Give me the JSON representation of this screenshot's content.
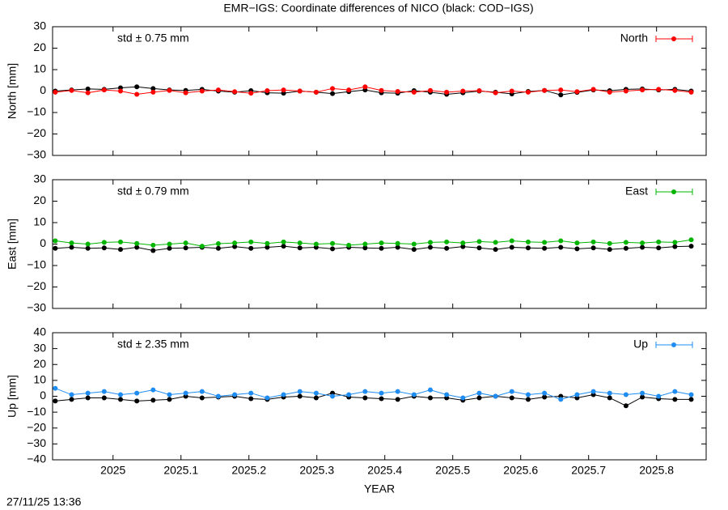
{
  "chart_data": [
    {
      "type": "scatter",
      "title": "EMR−IGS: Coordinate differences of NICO (black: COD−IGS)",
      "ylabel": "North [mm]",
      "annotation": "std ± 0.75 mm",
      "legend": "top-right",
      "xlim": [
        2024.911,
        2025.873
      ],
      "xticks": [
        2025,
        2025.1,
        2025.2,
        2025.3,
        2025.4,
        2025.5,
        2025.6,
        2025.7,
        2025.8
      ],
      "ylim": [
        -30,
        30
      ],
      "yticks": [
        {
          "value": -30,
          "label": "−30"
        },
        {
          "value": -20,
          "label": "−20"
        },
        {
          "value": -10,
          "label": "−10"
        },
        0,
        10,
        20,
        30
      ],
      "x": [
        2024.915,
        2024.939,
        2024.963,
        2024.987,
        2025.011,
        2025.035,
        2025.059,
        2025.083,
        2025.107,
        2025.131,
        2025.155,
        2025.179,
        2025.203,
        2025.227,
        2025.251,
        2025.275,
        2025.299,
        2025.323,
        2025.347,
        2025.371,
        2025.395,
        2025.419,
        2025.443,
        2025.467,
        2025.491,
        2025.515,
        2025.539,
        2025.563,
        2025.587,
        2025.611,
        2025.635,
        2025.659,
        2025.683,
        2025.707,
        2025.731,
        2025.755,
        2025.779,
        2025.803,
        2025.827,
        2025.851
      ],
      "series": [
        {
          "color": "#000000",
          "values": [
            0,
            0.5,
            1,
            0.8,
            1.5,
            2,
            1.2,
            0.5,
            0.3,
            0.8,
            0,
            -0.5,
            0.2,
            -0.8,
            -1,
            0,
            -0.5,
            -1.2,
            -0.3,
            0.5,
            -0.8,
            -1,
            0.2,
            -0.5,
            -1.5,
            -0.8,
            0,
            -0.5,
            -1.3,
            -0.2,
            0.3,
            -1.8,
            -0.6,
            0.5,
            0.2,
            0.8,
            1,
            0.5,
            0.8,
            0
          ]
        },
        {
          "name": "North",
          "color": "#ff0000",
          "values": [
            -0.5,
            0.3,
            -0.8,
            0.5,
            0,
            -1.5,
            -0.5,
            0.3,
            -0.8,
            0,
            0.5,
            -0.3,
            -1,
            0.2,
            0.5,
            0,
            -0.5,
            1.2,
            0.5,
            2,
            0.3,
            -0.2,
            -0.5,
            0.3,
            -0.5,
            0,
            0.2,
            -0.8,
            0,
            -0.5,
            0.3,
            0.5,
            -0.3,
            0.8,
            -0.5,
            0,
            0.5,
            0.8,
            0.3,
            -0.5
          ]
        }
      ]
    },
    {
      "type": "scatter",
      "ylabel": "East [mm]",
      "annotation": "std ± 0.79 mm",
      "legend": "top-right",
      "xlim": [
        2024.911,
        2025.873
      ],
      "xticks": [
        2025,
        2025.1,
        2025.2,
        2025.3,
        2025.4,
        2025.5,
        2025.6,
        2025.7,
        2025.8
      ],
      "ylim": [
        -30,
        30
      ],
      "yticks": [
        {
          "value": -30,
          "label": "−30"
        },
        {
          "value": -20,
          "label": "−20"
        },
        {
          "value": -10,
          "label": "−10"
        },
        0,
        10,
        20,
        30
      ],
      "x": [
        2024.915,
        2024.939,
        2024.963,
        2024.987,
        2025.011,
        2025.035,
        2025.059,
        2025.083,
        2025.107,
        2025.131,
        2025.155,
        2025.179,
        2025.203,
        2025.227,
        2025.251,
        2025.275,
        2025.299,
        2025.323,
        2025.347,
        2025.371,
        2025.395,
        2025.419,
        2025.443,
        2025.467,
        2025.491,
        2025.515,
        2025.539,
        2025.563,
        2025.587,
        2025.611,
        2025.635,
        2025.659,
        2025.683,
        2025.707,
        2025.731,
        2025.755,
        2025.779,
        2025.803,
        2025.827,
        2025.851
      ],
      "series": [
        {
          "color": "#000000",
          "values": [
            -2,
            -1.5,
            -2,
            -1.8,
            -2.5,
            -1.5,
            -3,
            -2,
            -1.8,
            -1.5,
            -2,
            -1.2,
            -2,
            -1.5,
            -1,
            -1.8,
            -1.5,
            -2.2,
            -1.5,
            -1.8,
            -2,
            -1.5,
            -2.5,
            -1.5,
            -2,
            -1.2,
            -1.8,
            -2.5,
            -1.5,
            -1.8,
            -2,
            -1.5,
            -2.2,
            -1.8,
            -2.5,
            -2,
            -1.5,
            -1.8,
            -1.2,
            -1
          ]
        },
        {
          "name": "East",
          "color": "#00b400",
          "values": [
            1.5,
            0.5,
            0,
            0.8,
            1,
            0.3,
            -0.5,
            0,
            0.5,
            -1,
            0.2,
            0.5,
            1,
            0.3,
            1,
            0.5,
            0,
            0.3,
            -0.5,
            0,
            0.5,
            0.3,
            0,
            0.8,
            1,
            0.5,
            1.2,
            0.8,
            1.5,
            1,
            0.8,
            1.5,
            0.5,
            1,
            0.3,
            0.8,
            0.5,
            1,
            0.8,
            2
          ]
        }
      ]
    },
    {
      "type": "scatter",
      "ylabel": "Up [mm]",
      "xlabel": "YEAR",
      "annotation": "std ± 2.35 mm",
      "legend": "top-right",
      "xlim": [
        2024.911,
        2025.873
      ],
      "xticks": [
        2025,
        2025.1,
        2025.2,
        2025.3,
        2025.4,
        2025.5,
        2025.6,
        2025.7,
        2025.8
      ],
      "ylim": [
        -40,
        40
      ],
      "yticks": [
        {
          "value": -40,
          "label": "−40"
        },
        {
          "value": -30,
          "label": "−30"
        },
        {
          "value": -20,
          "label": "−20"
        },
        {
          "value": -10,
          "label": "−10"
        },
        0,
        10,
        20,
        30,
        40
      ],
      "x": [
        2024.915,
        2024.939,
        2024.963,
        2024.987,
        2025.011,
        2025.035,
        2025.059,
        2025.083,
        2025.107,
        2025.131,
        2025.155,
        2025.179,
        2025.203,
        2025.227,
        2025.251,
        2025.275,
        2025.299,
        2025.323,
        2025.347,
        2025.371,
        2025.395,
        2025.419,
        2025.443,
        2025.467,
        2025.491,
        2025.515,
        2025.539,
        2025.563,
        2025.587,
        2025.611,
        2025.635,
        2025.659,
        2025.683,
        2025.707,
        2025.731,
        2025.755,
        2025.779,
        2025.803,
        2025.827,
        2025.851
      ],
      "series": [
        {
          "color": "#000000",
          "values": [
            -3,
            -2,
            -1,
            -1,
            -2,
            -3,
            -2.5,
            -2,
            0,
            -1,
            -0.5,
            0,
            -1.5,
            -2,
            -0.5,
            0,
            -1,
            2,
            -0.5,
            -1,
            -1.5,
            -2,
            0,
            -1,
            -1,
            -2.5,
            -1,
            0,
            -1,
            -2,
            -0.5,
            0,
            -1,
            1,
            -1,
            -6,
            -0.5,
            -1.5,
            -2,
            -2
          ]
        },
        {
          "name": "Up",
          "color": "#1e8cf0",
          "values": [
            5,
            1,
            2,
            3,
            1,
            2,
            4,
            1,
            2,
            3,
            0,
            1,
            2,
            -1,
            1,
            3,
            2,
            0,
            1,
            3,
            2,
            3,
            1,
            4,
            1,
            -1,
            2,
            0,
            3,
            1,
            2,
            -2,
            1,
            3,
            2,
            1,
            2,
            0,
            3,
            1
          ]
        }
      ]
    }
  ],
  "footer": {
    "timestamp": "27/11/25 13:36"
  }
}
